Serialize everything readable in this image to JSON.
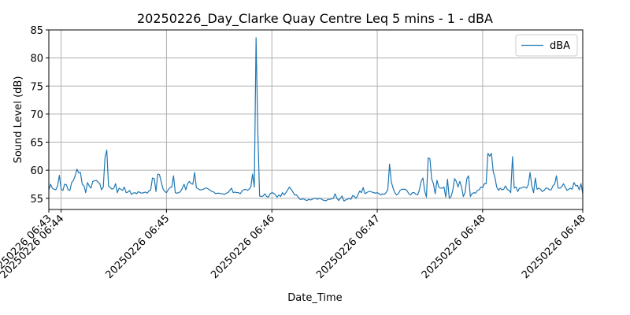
{
  "chart_data": {
    "type": "line",
    "title": "20250226_Day_Clarke Quay Centre Leq 5 mins - 1 - dBA",
    "xlabel": "Date_Time",
    "ylabel": "Sound Level (dB)",
    "xlim": [
      0,
      304
    ],
    "ylim": [
      53,
      85
    ],
    "y_ticks": [
      55,
      60,
      65,
      70,
      75,
      80,
      85
    ],
    "x_ticks": [
      {
        "x": 0,
        "label": "20250226 06:43"
      },
      {
        "x": 7,
        "label": "20250226 06:44"
      },
      {
        "x": 67,
        "label": "20250226 06:45"
      },
      {
        "x": 127,
        "label": "20250226 06:46"
      },
      {
        "x": 187,
        "label": "20250226 06:47"
      },
      {
        "x": 247,
        "label": "20250226 06:48"
      },
      {
        "x": 304,
        "label": "20250226 06:48"
      }
    ],
    "grid": true,
    "legend": {
      "position": "top-right",
      "entries": [
        "dBA"
      ]
    },
    "series": [
      {
        "name": "dBA",
        "color": "#1f77b4",
        "points": [
          [
            0,
            56.5
          ],
          [
            1,
            57.5
          ],
          [
            2,
            56.8
          ],
          [
            3,
            56.6
          ],
          [
            4,
            56.5
          ],
          [
            5,
            57.2
          ],
          [
            6,
            59.1
          ],
          [
            7,
            56.6
          ],
          [
            8,
            56.4
          ],
          [
            9,
            57.5
          ],
          [
            10,
            57.4
          ],
          [
            11,
            56.5
          ],
          [
            12,
            56.4
          ],
          [
            13,
            57.8
          ],
          [
            14,
            58.2
          ],
          [
            15,
            59.0
          ],
          [
            16,
            60.2
          ],
          [
            17,
            59.5
          ],
          [
            18,
            59.6
          ],
          [
            19,
            57.5
          ],
          [
            20,
            57.2
          ],
          [
            21,
            56.0
          ],
          [
            22,
            57.8
          ],
          [
            23,
            57.2
          ],
          [
            24,
            56.8
          ],
          [
            25,
            58.0
          ],
          [
            26,
            58.1
          ],
          [
            27,
            58.2
          ],
          [
            28,
            57.9
          ],
          [
            29,
            57.6
          ],
          [
            30,
            56.5
          ],
          [
            31,
            57.0
          ],
          [
            32,
            62.3
          ],
          [
            33,
            63.6
          ],
          [
            34,
            57.2
          ],
          [
            35,
            56.9
          ],
          [
            36,
            56.6
          ],
          [
            37,
            56.8
          ],
          [
            38,
            57.6
          ],
          [
            39,
            56.0
          ],
          [
            40,
            56.8
          ],
          [
            41,
            56.6
          ],
          [
            42,
            56.4
          ],
          [
            43,
            57.0
          ],
          [
            44,
            56.0
          ],
          [
            45,
            56.1
          ],
          [
            46,
            56.4
          ],
          [
            47,
            55.7
          ],
          [
            48,
            55.9
          ],
          [
            49,
            56.0
          ],
          [
            50,
            55.8
          ],
          [
            51,
            56.2
          ],
          [
            52,
            56.0
          ],
          [
            53,
            55.9
          ],
          [
            54,
            56.0
          ],
          [
            55,
            56.1
          ],
          [
            56,
            55.9
          ],
          [
            57,
            56.3
          ],
          [
            58,
            56.5
          ],
          [
            59,
            58.6
          ],
          [
            60,
            58.5
          ],
          [
            61,
            56.2
          ],
          [
            62,
            59.3
          ],
          [
            63,
            59.2
          ],
          [
            64,
            57.9
          ],
          [
            65,
            56.7
          ],
          [
            66,
            56.2
          ],
          [
            67,
            56.0
          ],
          [
            68,
            56.5
          ],
          [
            69,
            56.9
          ],
          [
            70,
            57.0
          ],
          [
            71,
            59.0
          ],
          [
            72,
            56.0
          ],
          [
            73,
            55.9
          ],
          [
            74,
            56.0
          ],
          [
            75,
            56.2
          ],
          [
            76,
            56.8
          ],
          [
            77,
            57.5
          ],
          [
            78,
            56.5
          ],
          [
            79,
            57.6
          ],
          [
            80,
            58.0
          ],
          [
            81,
            57.6
          ],
          [
            82,
            57.5
          ],
          [
            83,
            59.6
          ],
          [
            84,
            56.9
          ],
          [
            85,
            56.7
          ],
          [
            86,
            56.5
          ],
          [
            87,
            56.5
          ],
          [
            88,
            56.6
          ],
          [
            89,
            56.8
          ],
          [
            90,
            56.8
          ],
          [
            91,
            56.6
          ],
          [
            92,
            56.4
          ],
          [
            93,
            56.2
          ],
          [
            94,
            56.1
          ],
          [
            95,
            55.8
          ],
          [
            96,
            55.9
          ],
          [
            97,
            55.9
          ],
          [
            98,
            55.8
          ],
          [
            99,
            55.8
          ],
          [
            100,
            55.7
          ],
          [
            101,
            55.9
          ],
          [
            102,
            56.0
          ],
          [
            103,
            56.4
          ],
          [
            104,
            56.8
          ],
          [
            105,
            56.0
          ],
          [
            106,
            56.1
          ],
          [
            107,
            56.0
          ],
          [
            108,
            56.0
          ],
          [
            109,
            55.8
          ],
          [
            110,
            56.3
          ],
          [
            111,
            56.5
          ],
          [
            112,
            56.6
          ],
          [
            113,
            56.4
          ],
          [
            114,
            56.6
          ],
          [
            115,
            57.0
          ],
          [
            116,
            59.3
          ],
          [
            117,
            57.0
          ],
          [
            118,
            83.6
          ],
          [
            119,
            67.0
          ],
          [
            120,
            55.4
          ],
          [
            121,
            55.3
          ],
          [
            122,
            55.4
          ],
          [
            123,
            55.8
          ],
          [
            124,
            55.3
          ],
          [
            125,
            55.2
          ],
          [
            126,
            55.8
          ],
          [
            127,
            56.0
          ],
          [
            128,
            55.9
          ],
          [
            129,
            55.6
          ],
          [
            130,
            55.2
          ],
          [
            131,
            55.6
          ],
          [
            132,
            55.3
          ],
          [
            133,
            56.0
          ],
          [
            134,
            55.6
          ],
          [
            135,
            56.0
          ],
          [
            136,
            56.5
          ],
          [
            137,
            57.0
          ],
          [
            138,
            56.6
          ],
          [
            139,
            56.1
          ],
          [
            140,
            55.6
          ],
          [
            141,
            55.6
          ],
          [
            142,
            55.2
          ],
          [
            143,
            54.8
          ],
          [
            144,
            54.8
          ],
          [
            145,
            54.9
          ],
          [
            146,
            54.7
          ],
          [
            147,
            54.6
          ],
          [
            148,
            54.8
          ],
          [
            149,
            54.7
          ],
          [
            150,
            54.8
          ],
          [
            151,
            55.0
          ],
          [
            152,
            55.0
          ],
          [
            153,
            54.8
          ],
          [
            154,
            55.0
          ],
          [
            155,
            54.9
          ],
          [
            156,
            54.7
          ],
          [
            157,
            54.6
          ],
          [
            158,
            54.6
          ],
          [
            159,
            54.8
          ],
          [
            160,
            54.8
          ],
          [
            161,
            54.9
          ],
          [
            162,
            55.0
          ],
          [
            163,
            55.8
          ],
          [
            164,
            55.0
          ],
          [
            165,
            54.6
          ],
          [
            166,
            55.0
          ],
          [
            167,
            55.4
          ],
          [
            168,
            54.5
          ],
          [
            169,
            54.7
          ],
          [
            170,
            54.8
          ],
          [
            171,
            55.0
          ],
          [
            172,
            54.8
          ],
          [
            173,
            55.5
          ],
          [
            174,
            55.3
          ],
          [
            175,
            55.0
          ],
          [
            176,
            55.6
          ],
          [
            177,
            56.3
          ],
          [
            178,
            56.0
          ],
          [
            179,
            56.9
          ],
          [
            180,
            55.8
          ],
          [
            181,
            56.0
          ],
          [
            182,
            56.2
          ],
          [
            183,
            56.2
          ],
          [
            184,
            56.1
          ],
          [
            185,
            56.0
          ],
          [
            186,
            55.9
          ],
          [
            187,
            56.0
          ],
          [
            188,
            55.8
          ],
          [
            189,
            55.6
          ],
          [
            190,
            55.8
          ],
          [
            191,
            55.7
          ],
          [
            192,
            56.0
          ],
          [
            193,
            56.5
          ],
          [
            194,
            61.1
          ],
          [
            195,
            57.9
          ],
          [
            196,
            56.8
          ],
          [
            197,
            56.0
          ],
          [
            198,
            55.6
          ],
          [
            199,
            55.8
          ],
          [
            200,
            56.4
          ],
          [
            201,
            56.6
          ],
          [
            202,
            56.6
          ],
          [
            203,
            56.6
          ],
          [
            204,
            56.3
          ],
          [
            205,
            55.8
          ],
          [
            206,
            55.6
          ],
          [
            207,
            56.0
          ],
          [
            208,
            56.0
          ],
          [
            209,
            55.7
          ],
          [
            210,
            55.6
          ],
          [
            211,
            56.5
          ],
          [
            212,
            58.0
          ],
          [
            213,
            58.6
          ],
          [
            214,
            56.3
          ],
          [
            215,
            55.2
          ],
          [
            216,
            62.2
          ],
          [
            217,
            62.0
          ],
          [
            218,
            58.4
          ],
          [
            219,
            57.6
          ],
          [
            220,
            55.8
          ],
          [
            221,
            58.2
          ],
          [
            222,
            57.0
          ],
          [
            223,
            56.8
          ],
          [
            224,
            56.8
          ],
          [
            225,
            57.0
          ],
          [
            226,
            55.2
          ],
          [
            227,
            58.4
          ],
          [
            228,
            55.0
          ],
          [
            229,
            55.3
          ],
          [
            230,
            56.4
          ],
          [
            231,
            58.5
          ],
          [
            232,
            58.0
          ],
          [
            233,
            57.0
          ],
          [
            234,
            58.0
          ],
          [
            235,
            57.0
          ],
          [
            236,
            55.3
          ],
          [
            237,
            56.0
          ],
          [
            238,
            58.5
          ],
          [
            239,
            59.0
          ],
          [
            240,
            55.3
          ],
          [
            241,
            55.8
          ],
          [
            242,
            56.0
          ],
          [
            243,
            55.9
          ],
          [
            244,
            56.4
          ],
          [
            245,
            56.5
          ],
          [
            246,
            57.0
          ],
          [
            247,
            56.9
          ],
          [
            248,
            57.6
          ],
          [
            249,
            57.6
          ],
          [
            250,
            63.0
          ],
          [
            251,
            62.5
          ],
          [
            252,
            63.0
          ],
          [
            253,
            59.8
          ],
          [
            254,
            58.7
          ],
          [
            255,
            57.0
          ],
          [
            256,
            56.4
          ],
          [
            257,
            56.8
          ],
          [
            258,
            56.5
          ],
          [
            259,
            56.6
          ],
          [
            260,
            57.2
          ],
          [
            261,
            56.6
          ],
          [
            262,
            56.4
          ],
          [
            263,
            56.0
          ],
          [
            264,
            62.4
          ],
          [
            265,
            56.8
          ],
          [
            266,
            57.0
          ],
          [
            267,
            56.2
          ],
          [
            268,
            56.8
          ],
          [
            269,
            56.8
          ],
          [
            270,
            57.0
          ],
          [
            271,
            57.0
          ],
          [
            272,
            56.8
          ],
          [
            273,
            57.4
          ],
          [
            274,
            59.6
          ],
          [
            275,
            57.2
          ],
          [
            276,
            56.0
          ],
          [
            277,
            58.6
          ],
          [
            278,
            56.6
          ],
          [
            279,
            56.8
          ],
          [
            280,
            56.6
          ],
          [
            281,
            56.2
          ],
          [
            282,
            56.4
          ],
          [
            283,
            56.8
          ],
          [
            284,
            56.8
          ],
          [
            285,
            56.5
          ],
          [
            286,
            56.5
          ],
          [
            287,
            57.2
          ],
          [
            288,
            57.5
          ],
          [
            289,
            59.0
          ],
          [
            290,
            56.8
          ],
          [
            291,
            56.8
          ],
          [
            292,
            57.0
          ],
          [
            293,
            57.6
          ],
          [
            294,
            57.0
          ],
          [
            295,
            56.4
          ],
          [
            296,
            56.6
          ],
          [
            297,
            56.8
          ],
          [
            298,
            56.6
          ],
          [
            299,
            57.8
          ],
          [
            300,
            57.2
          ],
          [
            301,
            57.3
          ],
          [
            302,
            56.5
          ],
          [
            303,
            57.6
          ],
          [
            304,
            55.8
          ]
        ]
      }
    ]
  }
}
